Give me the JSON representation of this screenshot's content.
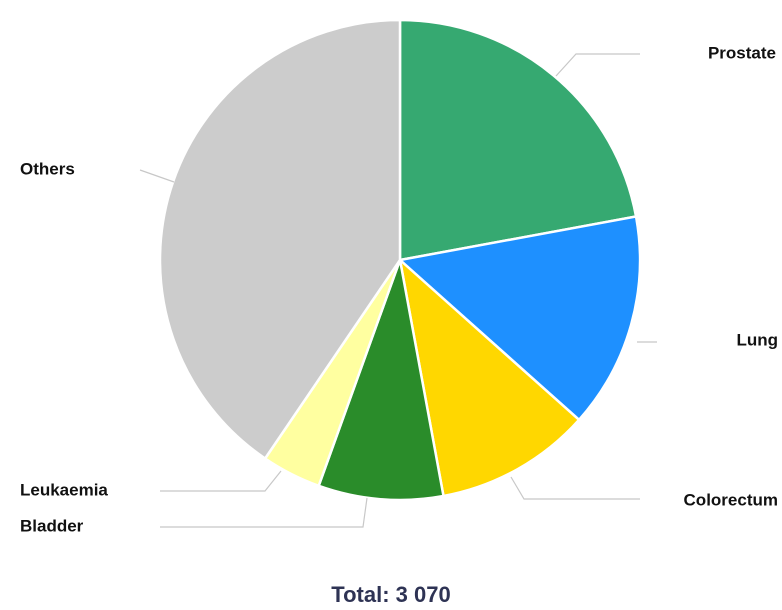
{
  "chart_data": {
    "type": "pie",
    "slices": [
      {
        "label": "Prostate",
        "value": 22.1,
        "color": "#36a971"
      },
      {
        "label": "Lung",
        "value": 14.5,
        "color": "#1e90ff"
      },
      {
        "label": "Colorectum",
        "value": 10.5,
        "color": "#ffd700"
      },
      {
        "label": "Bladder",
        "value": 8.4,
        "color": "#2a8c2a"
      },
      {
        "label": "Leukaemia",
        "value": 4.0,
        "color": "#ffffa0"
      },
      {
        "label": "Others",
        "value": 40.5,
        "color": "#cccccc"
      }
    ],
    "start_angle": "12 o'clock",
    "direction": "clockwise",
    "legend": "none (direct labels with leader lines)"
  },
  "total": {
    "label": "Total: 3 070"
  }
}
